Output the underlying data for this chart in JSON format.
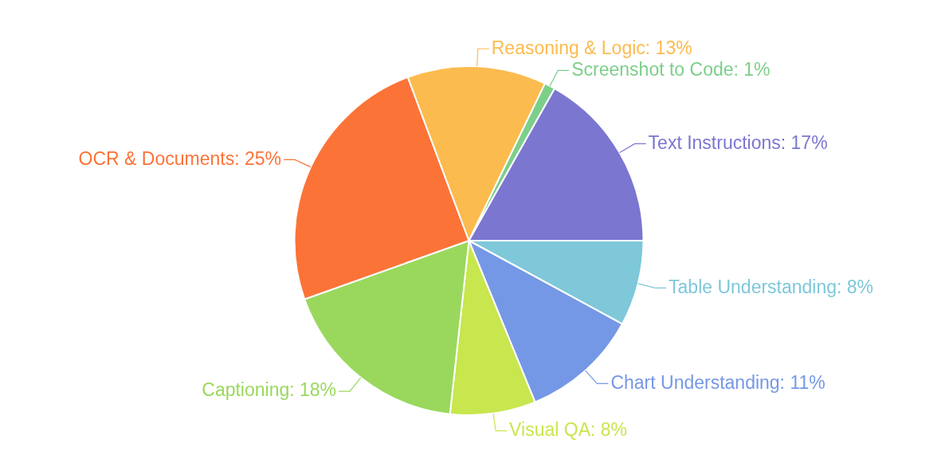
{
  "chart_data": {
    "type": "pie",
    "categories": [
      "Table Understanding",
      "Chart Understanding",
      "Visual QA",
      "Captioning",
      "OCR & Documents",
      "Reasoning & Logic",
      "Screenshot to Code",
      "Text Instructions"
    ],
    "values": [
      8,
      11,
      8,
      18,
      25,
      13,
      1,
      17
    ],
    "value_labels": [
      "8%",
      "11%",
      "8%",
      "18%",
      "25%",
      "13%",
      "1%",
      "17%"
    ],
    "colors": [
      "#7ec8da",
      "#7598e6",
      "#c8e64d",
      "#9ad85d",
      "#fc7338",
      "#fcbb4e",
      "#7ccf8a",
      "#7b76d0"
    ],
    "legend": false
  }
}
